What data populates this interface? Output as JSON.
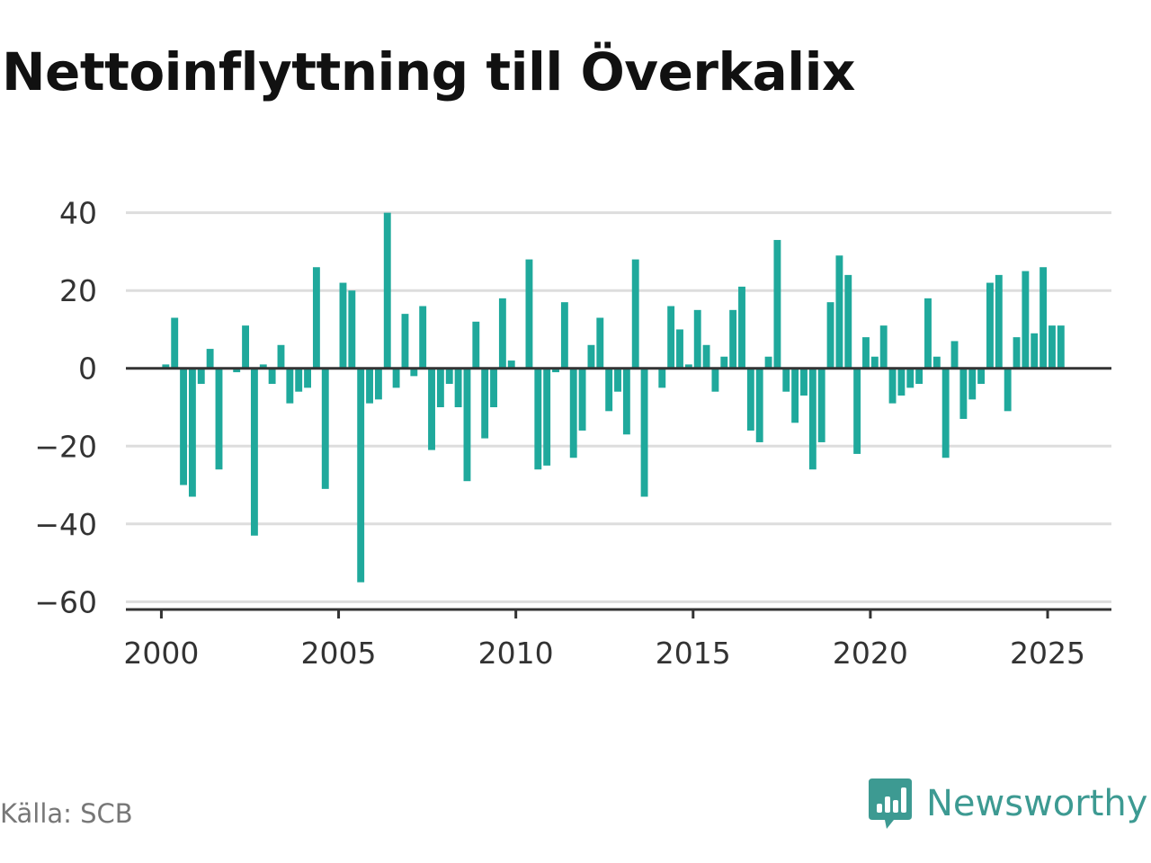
{
  "title": "Nettoinflyttning till Överkalix",
  "source": "Källa: SCB",
  "brand": {
    "name": "Newsworthy"
  },
  "colors": {
    "bar": "#1fa99c",
    "brand": "#3d9a92",
    "grid": "#dddddd",
    "zero": "#333333"
  },
  "chart_data": {
    "type": "bar",
    "title": "Nettoinflyttning till Överkalix",
    "xlabel": "",
    "ylabel": "",
    "ylim": [
      -62,
      42
    ],
    "xlim": [
      1999.0,
      2026.8
    ],
    "grid": true,
    "y_ticks": [
      40,
      20,
      0,
      -20,
      -40,
      -60
    ],
    "y_tick_labels": [
      "40",
      "20",
      "0",
      "−20",
      "−40",
      "−60"
    ],
    "x_ticks": [
      2000,
      2005,
      2010,
      2015,
      2020,
      2025
    ],
    "x_tick_labels": [
      "2000",
      "2005",
      "2010",
      "2015",
      "2020",
      "2025"
    ],
    "x": [
      "2000-Q1",
      "2000-Q2",
      "2000-Q3",
      "2000-Q4",
      "2001-Q1",
      "2001-Q2",
      "2001-Q3",
      "2001-Q4",
      "2002-Q1",
      "2002-Q2",
      "2002-Q3",
      "2002-Q4",
      "2003-Q1",
      "2003-Q2",
      "2003-Q3",
      "2003-Q4",
      "2004-Q1",
      "2004-Q2",
      "2004-Q3",
      "2004-Q4",
      "2005-Q1",
      "2005-Q2",
      "2005-Q3",
      "2005-Q4",
      "2006-Q1",
      "2006-Q2",
      "2006-Q3",
      "2006-Q4",
      "2007-Q1",
      "2007-Q2",
      "2007-Q3",
      "2007-Q4",
      "2008-Q1",
      "2008-Q2",
      "2008-Q3",
      "2008-Q4",
      "2009-Q1",
      "2009-Q2",
      "2009-Q3",
      "2009-Q4",
      "2010-Q1",
      "2010-Q2",
      "2010-Q3",
      "2010-Q4",
      "2011-Q1",
      "2011-Q2",
      "2011-Q3",
      "2011-Q4",
      "2012-Q1",
      "2012-Q2",
      "2012-Q3",
      "2012-Q4",
      "2013-Q1",
      "2013-Q2",
      "2013-Q3",
      "2013-Q4",
      "2014-Q1",
      "2014-Q2",
      "2014-Q3",
      "2014-Q4",
      "2015-Q1",
      "2015-Q2",
      "2015-Q3",
      "2015-Q4",
      "2016-Q1",
      "2016-Q2",
      "2016-Q3",
      "2016-Q4",
      "2017-Q1",
      "2017-Q2",
      "2017-Q3",
      "2017-Q4",
      "2018-Q1",
      "2018-Q2",
      "2018-Q3",
      "2018-Q4",
      "2019-Q1",
      "2019-Q2",
      "2019-Q3",
      "2019-Q4",
      "2020-Q1",
      "2020-Q2",
      "2020-Q3",
      "2020-Q4",
      "2021-Q1",
      "2021-Q2",
      "2021-Q3",
      "2021-Q4",
      "2022-Q1",
      "2022-Q2",
      "2022-Q3",
      "2022-Q4",
      "2023-Q1",
      "2023-Q2",
      "2023-Q3",
      "2023-Q4",
      "2024-Q1",
      "2024-Q2",
      "2024-Q3",
      "2024-Q4",
      "2025-Q1",
      "2025-Q2"
    ],
    "values": [
      1,
      13,
      -30,
      -33,
      -4,
      5,
      -26,
      0,
      -1,
      11,
      -43,
      1,
      -4,
      6,
      -9,
      -6,
      -5,
      26,
      -31,
      0,
      22,
      20,
      -55,
      -9,
      -8,
      40,
      -5,
      14,
      -2,
      16,
      -21,
      -10,
      -4,
      -10,
      -29,
      12,
      -18,
      -10,
      18,
      2,
      0,
      28,
      -26,
      -25,
      -1,
      17,
      -23,
      -16,
      6,
      13,
      -11,
      -6,
      -17,
      28,
      -33,
      0,
      -5,
      16,
      10,
      1,
      15,
      6,
      -6,
      3,
      15,
      21,
      -16,
      -19,
      3,
      33,
      -6,
      -14,
      -7,
      -26,
      -19,
      17,
      29,
      24,
      -22,
      8,
      3,
      11,
      -9,
      -7,
      -5,
      -4,
      18,
      3,
      -23,
      7,
      -13,
      -8,
      -4,
      22,
      24,
      -11,
      8,
      25,
      9,
      26,
      11,
      11
    ]
  }
}
